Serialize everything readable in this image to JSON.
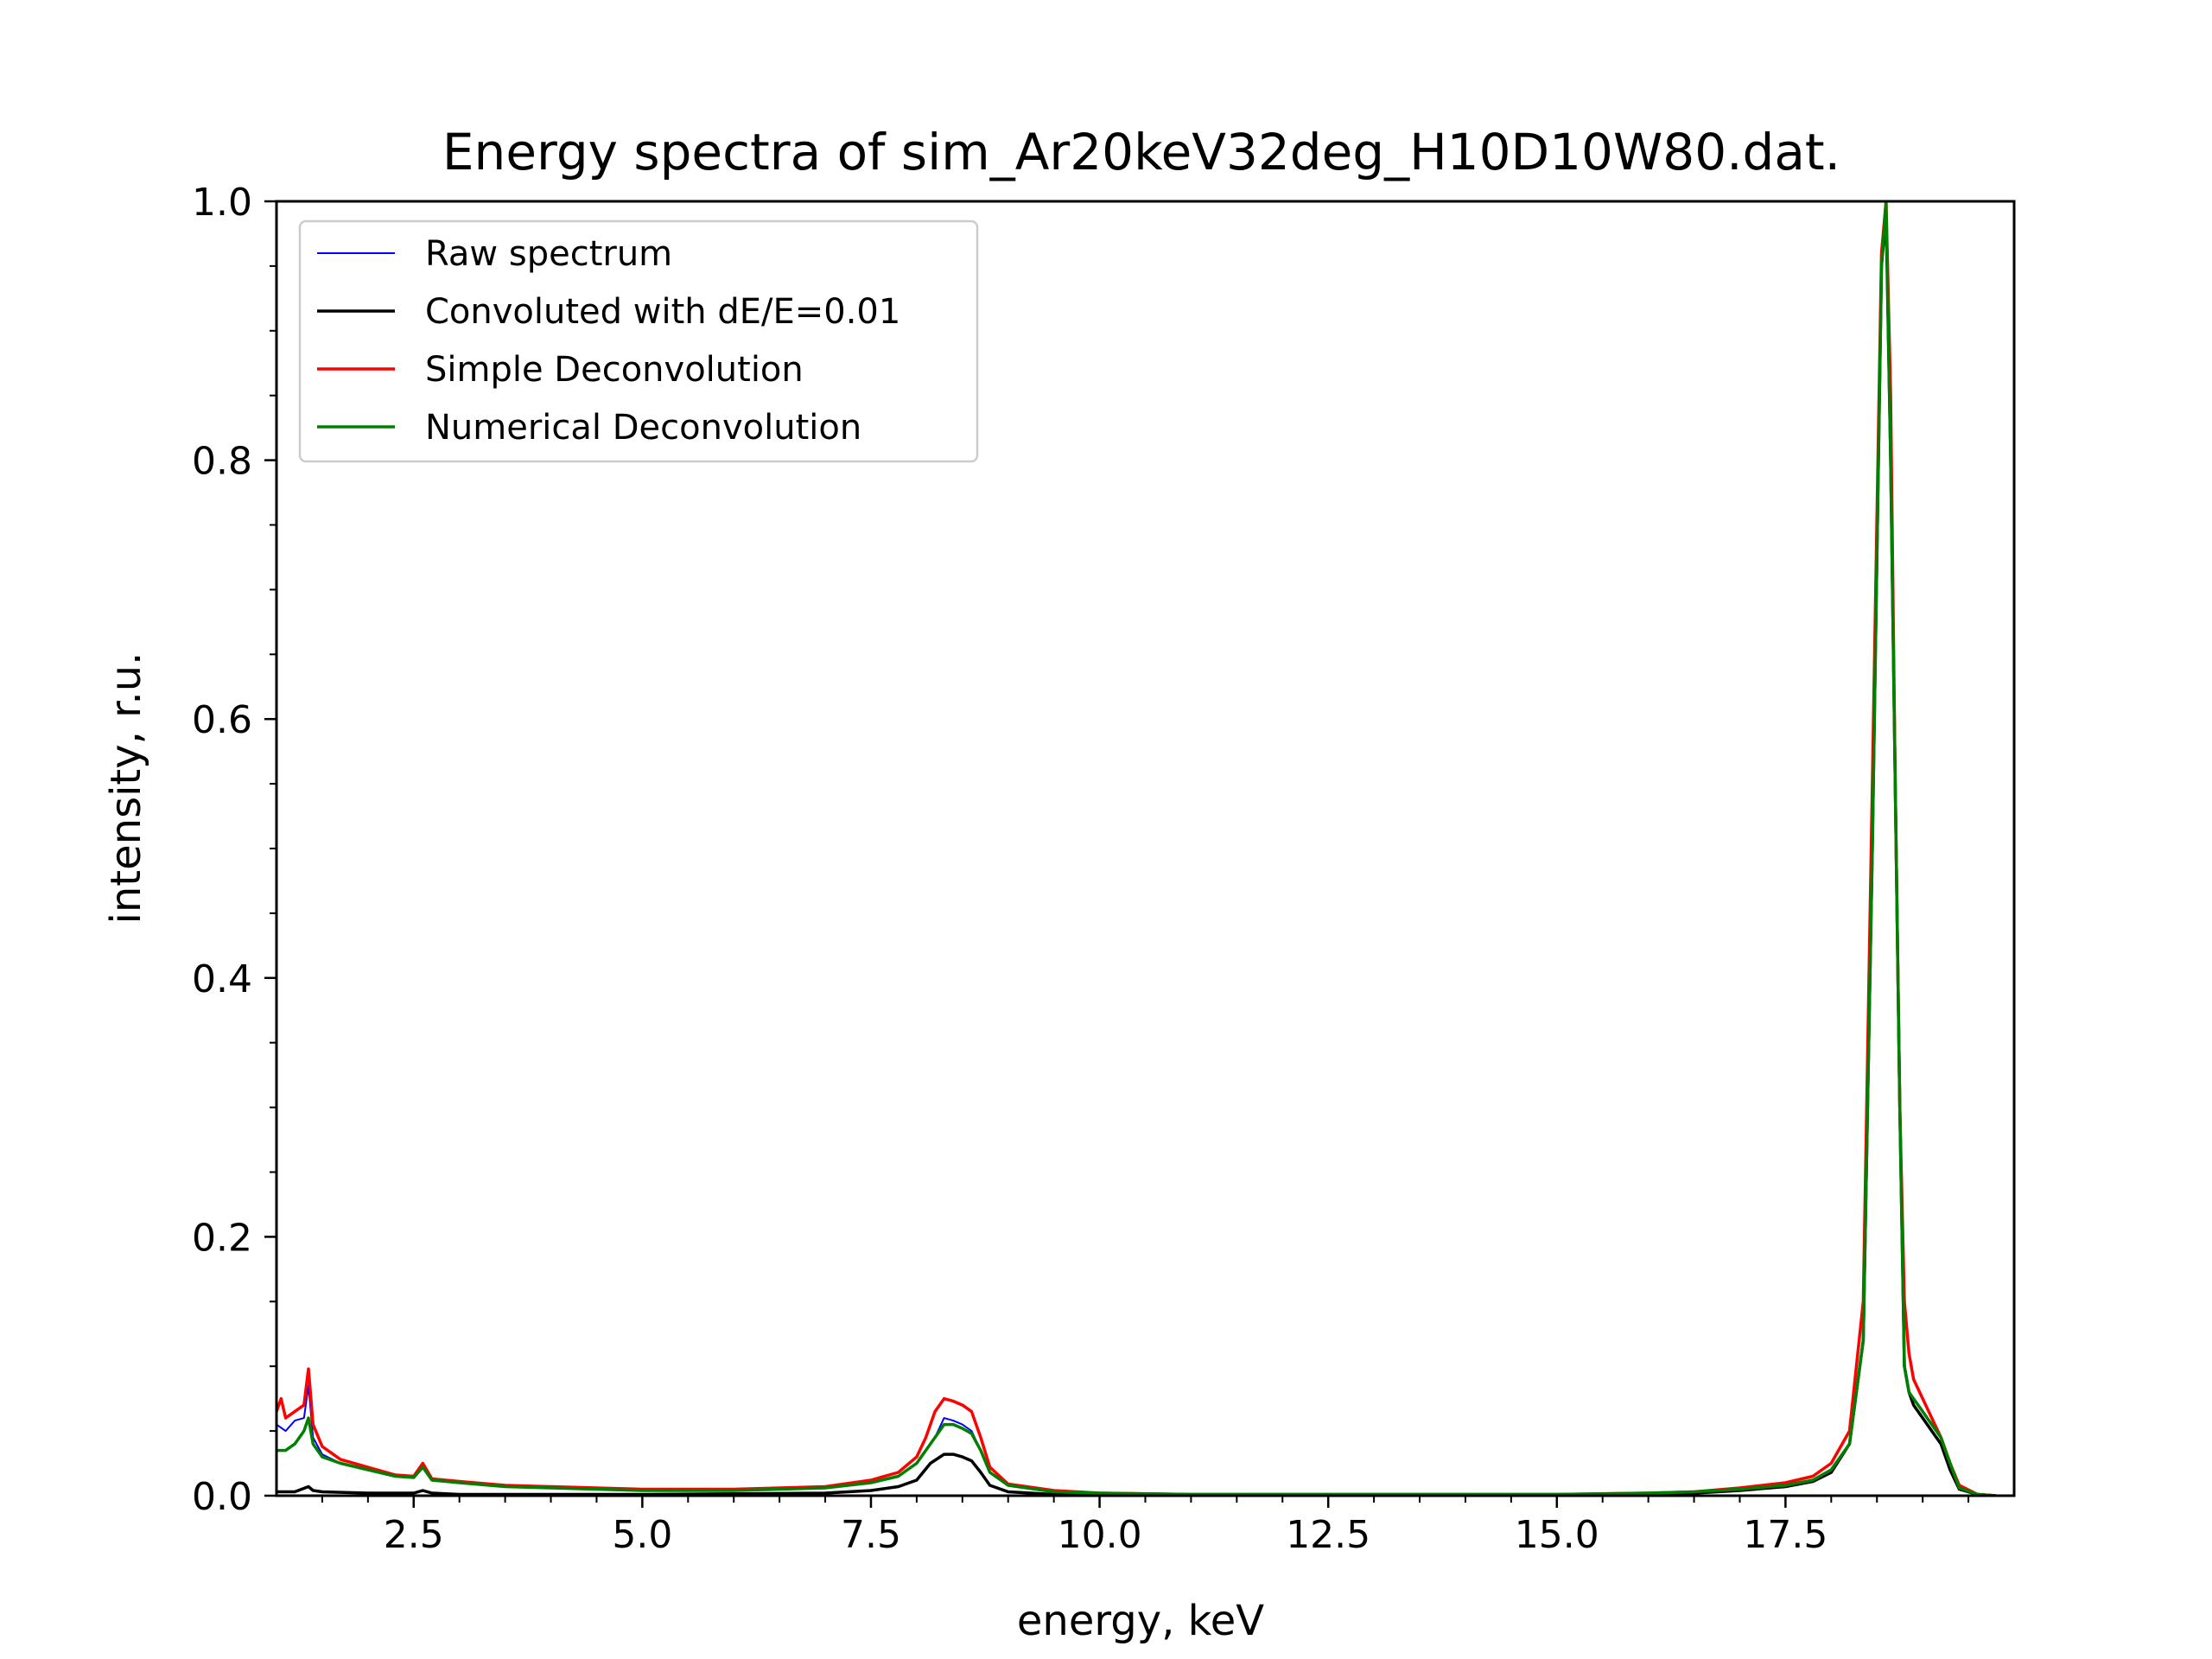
{
  "chart_data": {
    "type": "line",
    "title": "Energy spectra of sim_Ar20keV32deg_H10D10W80.dat.",
    "xlabel": "energy, keV",
    "ylabel": "intensity, r.u.",
    "xlim": [
      1.0,
      20.0
    ],
    "ylim": [
      0.0,
      1.0
    ],
    "xticks": [
      2.5,
      5.0,
      7.5,
      10.0,
      12.5,
      15.0,
      17.5
    ],
    "xtick_labels": [
      "2.5",
      "5.0",
      "7.5",
      "10.0",
      "12.5",
      "15.0",
      "17.5"
    ],
    "yticks": [
      0.0,
      0.2,
      0.4,
      0.6,
      0.8,
      1.0
    ],
    "ytick_labels": [
      "0.0",
      "0.2",
      "0.4",
      "0.6",
      "0.8",
      "1.0"
    ],
    "grid": false,
    "legend_position": "top-left",
    "series": [
      {
        "name": "Raw spectrum",
        "color": "#0000ff",
        "width": "thin",
        "x": [
          1.0,
          1.1,
          1.2,
          1.3,
          1.35,
          1.4,
          1.5,
          1.7,
          2.0,
          2.3,
          2.5,
          2.6,
          2.7,
          3.0,
          3.5,
          4.0,
          5.0,
          6.0,
          7.0,
          7.5,
          7.8,
          8.0,
          8.2,
          8.3,
          8.4,
          8.5,
          8.6,
          8.7,
          8.8,
          9.0,
          9.5,
          10.0,
          11.0,
          13.0,
          15.0,
          16.0,
          16.5,
          17.0,
          17.5,
          17.8,
          18.0,
          18.2,
          18.35,
          18.45,
          18.55,
          18.6,
          18.65,
          18.75,
          18.8,
          18.85,
          18.9,
          18.95,
          19.0,
          19.05,
          19.1,
          19.2,
          19.3,
          19.4,
          19.6,
          19.8
        ],
        "y": [
          0.055,
          0.05,
          0.058,
          0.06,
          0.085,
          0.045,
          0.032,
          0.025,
          0.02,
          0.015,
          0.014,
          0.022,
          0.012,
          0.01,
          0.007,
          0.006,
          0.004,
          0.004,
          0.006,
          0.01,
          0.015,
          0.025,
          0.045,
          0.06,
          0.058,
          0.055,
          0.05,
          0.035,
          0.018,
          0.008,
          0.003,
          0.002,
          0.001,
          0.001,
          0.001,
          0.002,
          0.003,
          0.005,
          0.008,
          0.012,
          0.02,
          0.04,
          0.12,
          0.5,
          0.95,
          0.98,
          0.8,
          0.3,
          0.1,
          0.08,
          0.07,
          0.065,
          0.06,
          0.055,
          0.05,
          0.04,
          0.02,
          0.005,
          0.001,
          0.0
        ]
      },
      {
        "name": "Convoluted with dE/E=0.01",
        "color": "#000000",
        "width": "normal",
        "x": [
          1.0,
          1.2,
          1.35,
          1.4,
          1.5,
          2.0,
          2.5,
          2.6,
          2.7,
          3.0,
          5.0,
          7.0,
          7.5,
          7.8,
          8.0,
          8.15,
          8.3,
          8.4,
          8.5,
          8.6,
          8.7,
          8.8,
          9.0,
          9.5,
          10.0,
          15.0,
          16.5,
          17.0,
          17.5,
          17.8,
          18.0,
          18.2,
          18.35,
          18.45,
          18.55,
          18.6,
          18.65,
          18.75,
          18.8,
          18.85,
          18.9,
          19.0,
          19.1,
          19.2,
          19.3,
          19.4,
          19.6,
          19.8
        ],
        "y": [
          0.003,
          0.003,
          0.007,
          0.004,
          0.003,
          0.002,
          0.002,
          0.004,
          0.002,
          0.001,
          0.001,
          0.002,
          0.004,
          0.007,
          0.012,
          0.025,
          0.032,
          0.032,
          0.03,
          0.027,
          0.018,
          0.008,
          0.003,
          0.001,
          0.0,
          0.0,
          0.002,
          0.004,
          0.007,
          0.011,
          0.018,
          0.04,
          0.12,
          0.5,
          0.95,
          0.99,
          0.8,
          0.3,
          0.1,
          0.08,
          0.07,
          0.06,
          0.05,
          0.04,
          0.02,
          0.005,
          0.001,
          0.0
        ]
      },
      {
        "name": "Simple Deconvolution",
        "color": "#ff0000",
        "width": "normal",
        "x": [
          1.0,
          1.05,
          1.1,
          1.2,
          1.3,
          1.35,
          1.4,
          1.5,
          1.7,
          2.0,
          2.3,
          2.5,
          2.6,
          2.7,
          3.0,
          3.5,
          4.0,
          5.0,
          6.0,
          7.0,
          7.5,
          7.8,
          8.0,
          8.1,
          8.2,
          8.3,
          8.4,
          8.5,
          8.6,
          8.7,
          8.8,
          9.0,
          9.5,
          10.0,
          11.0,
          13.0,
          15.0,
          16.0,
          16.5,
          17.0,
          17.5,
          17.8,
          18.0,
          18.2,
          18.35,
          18.45,
          18.55,
          18.6,
          18.65,
          18.7,
          18.75,
          18.8,
          18.85,
          18.9,
          19.0,
          19.1,
          19.2,
          19.3,
          19.4,
          19.6,
          19.8
        ],
        "y": [
          0.065,
          0.075,
          0.06,
          0.065,
          0.07,
          0.098,
          0.055,
          0.038,
          0.028,
          0.022,
          0.016,
          0.015,
          0.025,
          0.013,
          0.011,
          0.008,
          0.007,
          0.005,
          0.005,
          0.007,
          0.012,
          0.018,
          0.03,
          0.045,
          0.065,
          0.075,
          0.073,
          0.07,
          0.065,
          0.045,
          0.022,
          0.009,
          0.004,
          0.002,
          0.001,
          0.001,
          0.001,
          0.002,
          0.003,
          0.006,
          0.01,
          0.015,
          0.025,
          0.05,
          0.15,
          0.55,
          0.96,
          1.0,
          0.85,
          0.55,
          0.3,
          0.15,
          0.11,
          0.09,
          0.075,
          0.06,
          0.045,
          0.025,
          0.008,
          0.001,
          0.0
        ]
      },
      {
        "name": "Numerical Deconvolution",
        "color": "#008000",
        "width": "normal",
        "x": [
          1.0,
          1.1,
          1.2,
          1.3,
          1.35,
          1.4,
          1.5,
          1.7,
          2.0,
          2.3,
          2.5,
          2.6,
          2.7,
          3.0,
          3.5,
          4.0,
          5.0,
          6.0,
          7.0,
          7.5,
          7.8,
          8.0,
          8.2,
          8.3,
          8.4,
          8.5,
          8.6,
          8.7,
          8.8,
          9.0,
          9.5,
          10.0,
          11.0,
          13.0,
          15.0,
          16.0,
          16.5,
          17.0,
          17.5,
          17.8,
          18.0,
          18.2,
          18.35,
          18.45,
          18.55,
          18.6,
          18.65,
          18.75,
          18.8,
          18.85,
          18.9,
          18.95,
          19.0,
          19.05,
          19.1,
          19.2,
          19.3,
          19.4,
          19.6,
          19.8
        ],
        "y": [
          0.035,
          0.035,
          0.04,
          0.05,
          0.06,
          0.04,
          0.03,
          0.025,
          0.02,
          0.015,
          0.014,
          0.022,
          0.012,
          0.01,
          0.007,
          0.006,
          0.004,
          0.004,
          0.006,
          0.01,
          0.015,
          0.025,
          0.045,
          0.055,
          0.055,
          0.052,
          0.048,
          0.035,
          0.018,
          0.008,
          0.003,
          0.002,
          0.001,
          0.001,
          0.001,
          0.002,
          0.003,
          0.005,
          0.008,
          0.012,
          0.02,
          0.04,
          0.12,
          0.5,
          0.95,
          1.0,
          0.8,
          0.3,
          0.1,
          0.08,
          0.075,
          0.07,
          0.065,
          0.06,
          0.055,
          0.045,
          0.025,
          0.006,
          0.001,
          0.0
        ]
      }
    ]
  }
}
